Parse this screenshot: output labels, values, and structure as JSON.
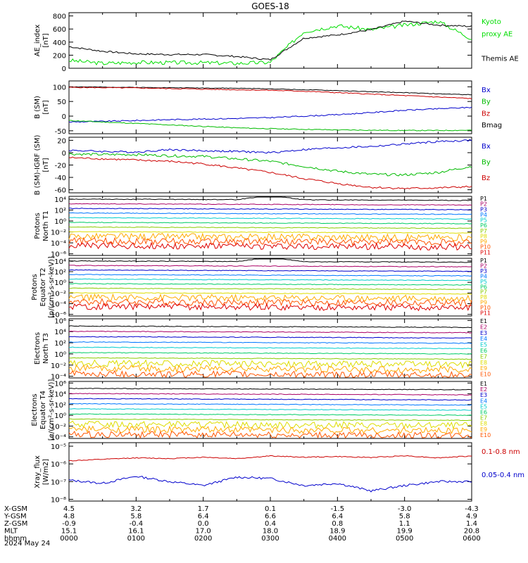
{
  "title": "GOES-18",
  "panels": [
    {
      "id": "ae",
      "ylabel": [
        "AE_index",
        "[nT]"
      ],
      "scale": "linear",
      "ylim": [
        0,
        850
      ],
      "ticks": [
        {
          "v": 0,
          "t": "0"
        },
        {
          "v": 200,
          "t": "200"
        },
        {
          "v": 400,
          "t": "400"
        },
        {
          "v": 600,
          "t": "600"
        },
        {
          "v": 800,
          "t": "800"
        }
      ],
      "legend": [
        {
          "text": "Kyoto",
          "color": "#00dd00"
        },
        {
          "text": "proxy AE",
          "color": "#00dd00"
        },
        {
          "text": "",
          "color": "#000000"
        },
        {
          "text": "Themis AE",
          "color": "#000000"
        }
      ]
    },
    {
      "id": "bsm",
      "ylabel": [
        "B (SM)",
        "[nT]"
      ],
      "scale": "linear",
      "ylim": [
        -60,
        120
      ],
      "ticks": [
        {
          "v": -50,
          "t": "-50"
        },
        {
          "v": 0,
          "t": "0"
        },
        {
          "v": 50,
          "t": "50"
        },
        {
          "v": 100,
          "t": "100"
        }
      ],
      "legend": [
        {
          "text": "Bx",
          "color": "#0000cc"
        },
        {
          "text": "By",
          "color": "#00bb00"
        },
        {
          "text": "Bz",
          "color": "#cc0000"
        },
        {
          "text": "Bmag",
          "color": "#000000"
        }
      ]
    },
    {
      "id": "bigrf",
      "ylabel": [
        "B (SM)-IGRF (SM)",
        "[nT]"
      ],
      "scale": "linear",
      "ylim": [
        -65,
        25
      ],
      "ticks": [
        {
          "v": -60,
          "t": "-60"
        },
        {
          "v": -40,
          "t": "-40"
        },
        {
          "v": -20,
          "t": "-20"
        },
        {
          "v": 0,
          "t": "0"
        },
        {
          "v": 20,
          "t": "20"
        }
      ],
      "legend": [
        {
          "text": "Bx",
          "color": "#0000cc"
        },
        {
          "text": "By",
          "color": "#00bb00"
        },
        {
          "text": "Bz",
          "color": "#cc0000"
        }
      ]
    },
    {
      "id": "pn",
      "ylabel": [
        "Protons",
        "North T1"
      ],
      "scale": "log",
      "ylim": [
        -6.3,
        4.5
      ],
      "ticks": [
        {
          "v": 4,
          "t": "10⁴"
        },
        {
          "v": 2,
          "t": "10²"
        },
        {
          "v": 0,
          "t": "10⁰"
        },
        {
          "v": -2,
          "t": "10⁻²"
        },
        {
          "v": -4,
          "t": "10⁻⁴"
        },
        {
          "v": -6,
          "t": "10⁻⁶"
        }
      ],
      "legend": [
        "P1",
        "P2",
        "P3",
        "P4",
        "P5",
        "P6",
        "P7",
        "P8",
        "P9",
        "P10",
        "P11"
      ]
    },
    {
      "id": "pe",
      "ylabel": [
        "Protons",
        "Equator T2",
        "[p/(cm²-s-sr-keV)]"
      ],
      "scale": "log",
      "ylim": [
        -6.3,
        4.5
      ],
      "ticks": [
        {
          "v": 4,
          "t": "10⁴"
        },
        {
          "v": 2,
          "t": "10²"
        },
        {
          "v": 0,
          "t": "10⁰"
        },
        {
          "v": -2,
          "t": "10⁻²"
        },
        {
          "v": -4,
          "t": "10⁻⁴"
        },
        {
          "v": -6,
          "t": "10⁻⁶"
        }
      ],
      "legend": [
        "P1",
        "P2",
        "P3",
        "P4",
        "P5",
        "P6",
        "P7",
        "P8",
        "P9",
        "P10",
        "P11"
      ]
    },
    {
      "id": "en",
      "ylabel": [
        "Electrons",
        "North T3"
      ],
      "scale": "log",
      "ylim": [
        -4.3,
        6.3
      ],
      "ticks": [
        {
          "v": 6,
          "t": "10⁶"
        },
        {
          "v": 4,
          "t": "10⁴"
        },
        {
          "v": 2,
          "t": "10²"
        },
        {
          "v": 0,
          "t": "10⁰"
        },
        {
          "v": -2,
          "t": "10⁻²"
        },
        {
          "v": -4,
          "t": "10⁻⁴"
        }
      ],
      "legend": [
        "E1",
        "E2",
        "E3",
        "E4",
        "E5",
        "E6",
        "E7",
        "E8",
        "E9",
        "E10"
      ]
    },
    {
      "id": "ee",
      "ylabel": [
        "Electrons",
        "Equator T4",
        "[e/(cm²-s-sr-keV)]"
      ],
      "scale": "log",
      "ylim": [
        -4.3,
        6.3
      ],
      "ticks": [
        {
          "v": 6,
          "t": "10⁶"
        },
        {
          "v": 4,
          "t": "10⁴"
        },
        {
          "v": 2,
          "t": "10²"
        },
        {
          "v": 0,
          "t": "10⁰"
        },
        {
          "v": -2,
          "t": "10⁻²"
        },
        {
          "v": -4,
          "t": "10⁻⁴"
        }
      ],
      "legend": [
        "E1",
        "E2",
        "E3",
        "E4",
        "E5",
        "E6",
        "E7",
        "E8",
        "E9",
        "E10"
      ]
    },
    {
      "id": "xray",
      "ylabel": [
        "Xray_flux",
        "[W/m2]"
      ],
      "scale": "log",
      "ylim": [
        -8.1,
        -4.8
      ],
      "ticks": [
        {
          "v": -5,
          "t": "10⁻⁵"
        },
        {
          "v": -6,
          "t": "10⁻⁶"
        },
        {
          "v": -7,
          "t": "10⁻⁷"
        },
        {
          "v": -8,
          "t": "10⁻⁸"
        }
      ],
      "legend": [
        {
          "text": "0.1-0.8 nm",
          "color": "#cc0000"
        },
        {
          "text": "0.05-0.4 nm",
          "color": "#0000cc"
        }
      ]
    }
  ],
  "channel_colors": [
    "#000000",
    "#aa0066",
    "#0000cc",
    "#0077ff",
    "#00cccc",
    "#00cc66",
    "#88cc00",
    "#dddd00",
    "#ffaa00",
    "#ff5500",
    "#dd0000"
  ],
  "ephemeris": [
    {
      "label": "X-GSM",
      "values": [
        "4.5",
        "3.2",
        "1.7",
        "0.1",
        "-1.5",
        "-3.0",
        "-4.3"
      ]
    },
    {
      "label": "Y-GSM",
      "values": [
        "4.8",
        "5.8",
        "6.4",
        "6.6",
        "6.4",
        "5.8",
        "4.9"
      ]
    },
    {
      "label": "Z-GSM",
      "values": [
        "-0.9",
        "-0.4",
        "0.0",
        "0.4",
        "0.8",
        "1.1",
        "1.4"
      ]
    },
    {
      "label": "MLT",
      "values": [
        "15.1",
        "16.1",
        "17.0",
        "18.0",
        "18.9",
        "19.9",
        "20.8"
      ]
    },
    {
      "label": "hhmm",
      "values": [
        "0000",
        "0100",
        "0200",
        "0300",
        "0400",
        "0500",
        "0600"
      ]
    }
  ],
  "date": "2024 May 24",
  "chart_data": {
    "type": "line",
    "x": [
      "0000",
      "0030",
      "0100",
      "0130",
      "0200",
      "0230",
      "0300",
      "0330",
      "0400",
      "0430",
      "0500",
      "0530",
      "0600"
    ],
    "series": [
      {
        "name": "Kyoto proxy AE",
        "values": [
          120,
          75,
          90,
          85,
          85,
          75,
          90,
          560,
          650,
          590,
          660,
          720,
          450
        ]
      },
      {
        "name": "Themis AE",
        "values": [
          330,
          260,
          220,
          210,
          210,
          180,
          130,
          460,
          510,
          590,
          720,
          660,
          640
        ]
      },
      {
        "name": "Bx",
        "values": [
          -20,
          -18,
          -15,
          -12,
          -10,
          -8,
          -5,
          0,
          5,
          12,
          20,
          25,
          30
        ]
      },
      {
        "name": "By",
        "values": [
          -15,
          -20,
          -25,
          -30,
          -35,
          -40,
          -43,
          -45,
          -47,
          -48,
          -49,
          -49,
          -48
        ]
      },
      {
        "name": "Bz",
        "values": [
          98,
          97,
          96,
          94,
          92,
          90,
          88,
          85,
          80,
          75,
          70,
          65,
          60
        ]
      },
      {
        "name": "Bmag",
        "values": [
          100,
          99,
          98,
          97,
          96,
          95,
          93,
          90,
          87,
          83,
          80,
          76,
          73
        ]
      },
      {
        "name": "0.1-0.8 nm",
        "values": [
          1.5e-06,
          1.8e-06,
          2.2e-06,
          2e-06,
          2.4e-06,
          2e-06,
          2.8e-06,
          2.4e-06,
          2.6e-06,
          2.3e-06,
          2.9e-06,
          2.2e-06,
          2.8e-06
        ]
      },
      {
        "name": "0.05-0.4 nm",
        "values": [
          1.2e-07,
          8e-08,
          2e-07,
          1e-07,
          6e-08,
          1.8e-07,
          1.5e-07,
          6e-08,
          8e-08,
          3e-08,
          6e-08,
          1e-07,
          1e-07
        ]
      }
    ]
  }
}
